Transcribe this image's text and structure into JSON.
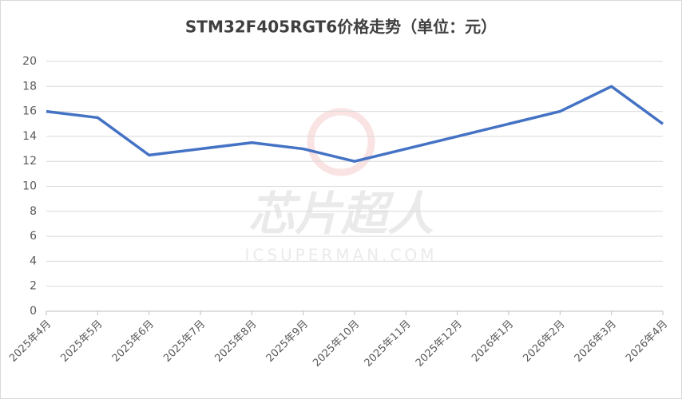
{
  "chart_data": {
    "type": "line",
    "title": "STM32F405RGT6价格走势（单位：元）",
    "categories": [
      "2025年4月",
      "2025年5月",
      "2025年6月",
      "2025年7月",
      "2025年8月",
      "2025年9月",
      "2025年10月",
      "2025年11月",
      "2025年12月",
      "2026年1月",
      "2026年2月",
      "2026年3月",
      "2026年4月"
    ],
    "series": [
      {
        "name": "价格",
        "color": "#4472c4",
        "values": [
          16,
          15.5,
          12.5,
          13,
          13.5,
          13,
          12,
          13,
          14,
          15,
          16,
          18,
          15
        ]
      }
    ],
    "ylim": [
      0,
      20
    ],
    "yticks": [
      0,
      2,
      4,
      6,
      8,
      10,
      12,
      14,
      16,
      18,
      20
    ],
    "grid": true,
    "watermark": {
      "title": "芯片超人",
      "subtitle": "ICSUPERMAN.COM"
    }
  }
}
